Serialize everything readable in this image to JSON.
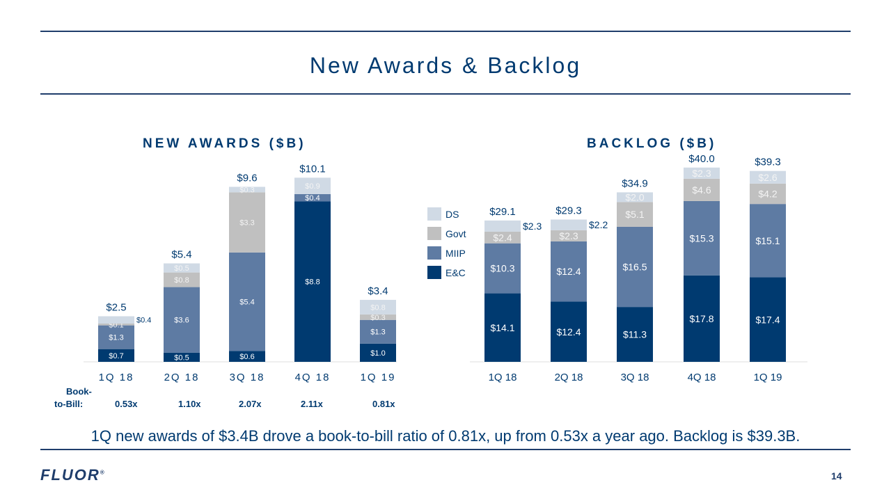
{
  "title": "New Awards & Backlog",
  "colors": {
    "E&C": "#003a70",
    "MIIP": "#5e7ba3",
    "Govt": "#c0c0c0",
    "DS": "#d0dae5"
  },
  "chart_data": [
    {
      "type": "bar",
      "stacked": true,
      "title": "NEW AWARDS ($B)",
      "categories": [
        "1Q 18",
        "2Q 18",
        "3Q 18",
        "4Q 18",
        "1Q 19"
      ],
      "series": [
        {
          "name": "E&C",
          "values": [
            0.7,
            0.5,
            0.6,
            8.8,
            1.0
          ],
          "labels": [
            "$0.7",
            "$0.5",
            "$0.6",
            "$8.8",
            "$1.0"
          ]
        },
        {
          "name": "MIIP",
          "values": [
            1.3,
            3.6,
            5.4,
            0.4,
            1.3
          ],
          "labels": [
            "$1.3",
            "$3.6",
            "$5.4",
            "$0.4",
            "$1.3"
          ]
        },
        {
          "name": "Govt",
          "values": [
            0.1,
            0.8,
            3.3,
            0,
            0.3
          ],
          "labels": [
            "$0.1",
            "$0.8",
            "$3.3",
            "",
            "$0.3"
          ]
        },
        {
          "name": "DS",
          "values": [
            0.4,
            0.5,
            0.3,
            0.9,
            0.8
          ],
          "labels": [
            "$0.4",
            "$0.5",
            "$0.3",
            "$0.9",
            "$0.8"
          ]
        }
      ],
      "totals": [
        "$2.5",
        "$5.4",
        "$9.6",
        "$10.1",
        "$3.4"
      ],
      "grid": false,
      "legend": "none"
    },
    {
      "type": "bar",
      "stacked": true,
      "title": "BACKLOG ($B)",
      "categories": [
        "1Q 18",
        "2Q 18",
        "3Q 18",
        "4Q 18",
        "1Q 19"
      ],
      "series": [
        {
          "name": "E&C",
          "values": [
            14.1,
            12.4,
            11.3,
            17.8,
            17.4
          ],
          "labels": [
            "$14.1",
            "$12.4",
            "$11.3",
            "$17.8",
            "$17.4"
          ]
        },
        {
          "name": "MIIP",
          "values": [
            10.3,
            12.4,
            16.5,
            15.3,
            15.1
          ],
          "labels": [
            "$10.3",
            "$12.4",
            "$16.5",
            "$15.3",
            "$15.1"
          ]
        },
        {
          "name": "Govt",
          "values": [
            2.4,
            2.3,
            5.1,
            4.6,
            4.2
          ],
          "labels": [
            "$2.4",
            "$2.3",
            "$5.1",
            "$4.6",
            "$4.2"
          ]
        },
        {
          "name": "DS",
          "values": [
            2.3,
            2.2,
            2.0,
            2.3,
            2.6
          ],
          "labels": [
            "$2.3",
            "$2.2",
            "$2.0",
            "$2.3",
            "$2.6"
          ]
        }
      ],
      "totals": [
        "$29.1",
        "$29.3",
        "$34.9",
        "$40.0",
        "$39.3"
      ],
      "legend_items": [
        "DS",
        "Govt",
        "MIIP",
        "E&C"
      ],
      "grid": false,
      "legend": "left"
    }
  ],
  "book_to_bill": {
    "label_line1": "Book-",
    "label_line2": "to-Bill:",
    "values": [
      "0.53x",
      "1.10x",
      "2.07x",
      "2.11x",
      "0.81x"
    ]
  },
  "summary": "1Q new awards of $3.4B drove a book-to-bill ratio of 0.81x, up from 0.53x a year ago. Backlog is $39.3B.",
  "footer": {
    "logo": "FLUOR",
    "page_number": "14"
  }
}
